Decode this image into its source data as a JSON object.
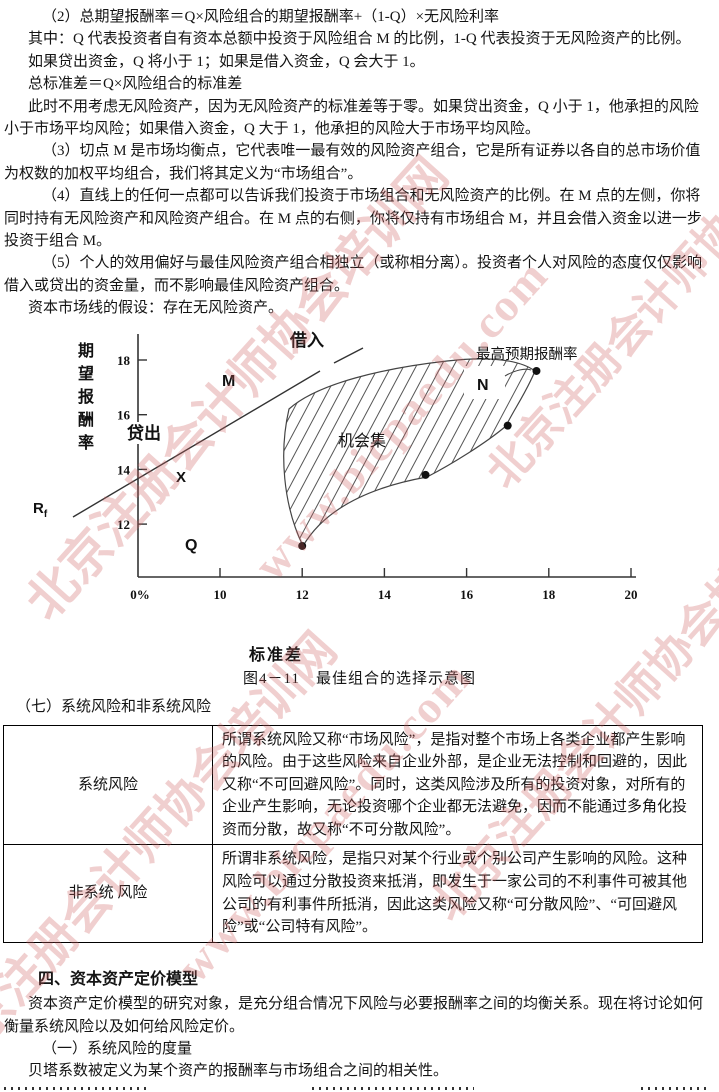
{
  "watermark": {
    "site_name": "北京注册会计师协会培训网",
    "url": "www.bicpaedu.com",
    "color": "#cd5f5f"
  },
  "intro_paragraphs": [
    {
      "indent": 2,
      "text": "（2）总期望报酬率＝Q×风险组合的期望报酬率+（1-Q）×无风险利率"
    },
    {
      "indent": 1,
      "text": "其中：Q 代表投资者自有资本总额中投资于风险组合 M 的比例，1-Q 代表投资于无风险资产的比例。"
    },
    {
      "indent": 1,
      "text": "如果贷出资金，Q 将小于 1；如果是借入资金，Q 会大于 1。"
    },
    {
      "indent": 1,
      "text": "总标准差＝Q×风险组合的标准差"
    },
    {
      "indent": 1,
      "text": "此时不用考虑无风险资产，因为无风险资产的标准差等于零。如果贷出资金，Q 小于 1，他承担的风险小于市场平均风险；如果借入资金，Q 大于 1，他承担的风险大于市场平均风险。"
    },
    {
      "indent": 2,
      "text": "（3）切点 M 是市场均衡点，它代表唯一最有效的风险资产组合，它是所有证券以各自的总市场价值为权数的加权平均组合，我们将其定义为“市场组合”。"
    },
    {
      "indent": 2,
      "text": "（4）直线上的任何一点都可以告诉我们投资于市场组合和无风险资产的比例。在 M 点的左侧，你将同时持有无风险资产和风险资产组合。在 M 点的右侧，你将仅持有市场组合 M，并且会借入资金以进一步投资于组合 M。"
    },
    {
      "indent": 2,
      "text": "（5）个人的效用偏好与最佳风险资产组合相独立（或称相分离）。投资者个人对风险的态度仅仅影响借入或贷出的资金量，而不影响最佳风险资产组合。"
    },
    {
      "indent": 1,
      "text": "资本市场线的假设：存在无风险资产。"
    }
  ],
  "figure": {
    "y_axis_label": "期望报酬率",
    "x_axis_label": "标准差",
    "x_origin_label": "0%",
    "x_ticks": [
      10,
      12,
      14,
      16,
      18,
      20
    ],
    "y_ticks": [
      18,
      16,
      14,
      12
    ],
    "labels": {
      "borrow": "借入",
      "lend": "贷出",
      "m": "M",
      "x": "X",
      "q": "Q",
      "n": "N",
      "rf_main": "R",
      "rf_sub": "f",
      "opportunity_set": "机会集",
      "max_return": "最高预期报酬率"
    },
    "points": [
      {
        "x": 12,
        "y": 11.2
      },
      {
        "x": 15,
        "y": 13.8
      },
      {
        "x": 17,
        "y": 15.6
      },
      {
        "x": 17.7,
        "y": 17.6
      }
    ]
  },
  "chart_data": {
    "type": "scatter",
    "title": "最佳组合的选择示意图",
    "xlabel": "标准差",
    "ylabel": "期望报酬率",
    "xlim": [
      0,
      20
    ],
    "ylim": [
      10,
      19
    ],
    "x_tick_labels": [
      "0%",
      "10",
      "12",
      "14",
      "16",
      "18",
      "20"
    ],
    "y_tick_labels": [
      "12",
      "14",
      "16",
      "18"
    ],
    "series": [
      {
        "name": "机会集边界点",
        "points": [
          [
            12,
            11.2
          ],
          [
            15,
            13.8
          ],
          [
            17,
            15.6
          ],
          [
            17.7,
            17.6
          ]
        ]
      },
      {
        "name": "资本市场线",
        "style": "line-solid-then-dashed",
        "annotations": [
          "Rf",
          "贷出",
          "M",
          "借入"
        ]
      }
    ],
    "region_label": "机会集",
    "annotation_max": "最高预期报酬率",
    "other_labels": [
      "X",
      "Q",
      "N"
    ]
  },
  "figure_caption": "图4－11　最佳组合的选择示意图",
  "section7_heading": "（七）系统风险和非系统风险",
  "risk_table": {
    "rows": [
      {
        "term": "系统风险",
        "definition": "所谓系统风险又称“市场风险”，是指对整个市场上各类企业都产生影响的风险。由于这些风险来自企业外部，是企业无法控制和回避的，因此又称“不可回避风险”。同时，这类风险涉及所有的投资对象，对所有的企业产生影响，无论投资哪个企业都无法避免，因而不能通过多角化投资而分散，故又称“不可分散风险”。"
      },
      {
        "term": "非系统 风险",
        "definition": "所谓非系统风险，是指只对某个行业或个别公司产生影响的风险。这种风险可以通过分散投资来抵消，即发生于一家公司的不利事件可被其他公司的有利事件所抵消，因此这类风险又称“可分散风险”、“可回避风险”或“公司特有风险”。"
      }
    ]
  },
  "section4": {
    "heading": "四、资本资产定价模型",
    "paragraphs": [
      {
        "indent": 1,
        "text": "资本资产定价模型的研究对象，是充分组合情况下风险与必要报酬率之间的均衡关系。现在将讨论如何衡量系统风险以及如何给风险定价。"
      },
      {
        "indent": 2,
        "text": "（一）系统风险的度量"
      },
      {
        "indent": 1,
        "text": "贝塔系数被定义为某个资产的报酬率与市场组合之间的相关性。"
      }
    ]
  }
}
